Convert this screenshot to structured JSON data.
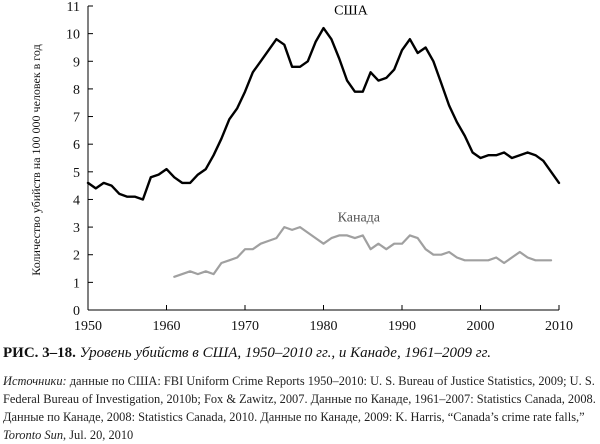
{
  "chart_data": {
    "type": "line",
    "xlabel": "",
    "ylabel": "Количество убийств на 100 000 человек в год",
    "xlim": [
      1950,
      2010
    ],
    "ylim": [
      0,
      11
    ],
    "x_ticks": [
      "1950",
      "1960",
      "1970",
      "1980",
      "1990",
      "2000",
      "2010"
    ],
    "y_ticks": [
      "0",
      "1",
      "2",
      "3",
      "4",
      "5",
      "6",
      "7",
      "8",
      "9",
      "10",
      "11"
    ],
    "grid": false,
    "series": [
      {
        "name": "США",
        "color": "#000000",
        "x": [
          1950,
          1951,
          1952,
          1953,
          1954,
          1955,
          1956,
          1957,
          1958,
          1959,
          1960,
          1961,
          1962,
          1963,
          1964,
          1965,
          1966,
          1967,
          1968,
          1969,
          1970,
          1971,
          1972,
          1973,
          1974,
          1975,
          1976,
          1977,
          1978,
          1979,
          1980,
          1981,
          1982,
          1983,
          1984,
          1985,
          1986,
          1987,
          1988,
          1989,
          1990,
          1991,
          1992,
          1993,
          1994,
          1995,
          1996,
          1997,
          1998,
          1999,
          2000,
          2001,
          2002,
          2003,
          2004,
          2005,
          2006,
          2007,
          2008,
          2009,
          2010
        ],
        "values": [
          4.6,
          4.4,
          4.6,
          4.5,
          4.2,
          4.1,
          4.1,
          4.0,
          4.8,
          4.9,
          5.1,
          4.8,
          4.6,
          4.6,
          4.9,
          5.1,
          5.6,
          6.2,
          6.9,
          7.3,
          7.9,
          8.6,
          9.0,
          9.4,
          9.8,
          9.6,
          8.8,
          8.8,
          9.0,
          9.7,
          10.2,
          9.8,
          9.1,
          8.3,
          7.9,
          7.9,
          8.6,
          8.3,
          8.4,
          8.7,
          9.4,
          9.8,
          9.3,
          9.5,
          9.0,
          8.2,
          7.4,
          6.8,
          6.3,
          5.7,
          5.5,
          5.6,
          5.6,
          5.7,
          5.5,
          5.6,
          5.7,
          5.6,
          5.4,
          5.0,
          4.6
        ]
      },
      {
        "name": "Канада",
        "color": "#a0a0a0",
        "x": [
          1961,
          1962,
          1963,
          1964,
          1965,
          1966,
          1967,
          1968,
          1969,
          1970,
          1971,
          1972,
          1973,
          1974,
          1975,
          1976,
          1977,
          1978,
          1979,
          1980,
          1981,
          1982,
          1983,
          1984,
          1985,
          1986,
          1987,
          1988,
          1989,
          1990,
          1991,
          1992,
          1993,
          1994,
          1995,
          1996,
          1997,
          1998,
          1999,
          2000,
          2001,
          2002,
          2003,
          2004,
          2005,
          2006,
          2007,
          2008,
          2009
        ],
        "values": [
          1.2,
          1.3,
          1.4,
          1.3,
          1.4,
          1.3,
          1.7,
          1.8,
          1.9,
          2.2,
          2.2,
          2.4,
          2.5,
          2.6,
          3.0,
          2.9,
          3.0,
          2.8,
          2.6,
          2.4,
          2.6,
          2.7,
          2.7,
          2.6,
          2.7,
          2.2,
          2.4,
          2.2,
          2.4,
          2.4,
          2.7,
          2.6,
          2.2,
          2.0,
          2.0,
          2.1,
          1.9,
          1.8,
          1.8,
          1.8,
          1.8,
          1.9,
          1.7,
          1.9,
          2.1,
          1.9,
          1.8,
          1.8,
          1.8
        ]
      }
    ],
    "annotations": [
      {
        "text": "США",
        "x": 1983.5,
        "y": 10.7
      },
      {
        "text": "Канада",
        "x": 1984.5,
        "y": 3.2
      }
    ]
  },
  "caption": {
    "label": "РИС. 3–18.",
    "text": "Уровень убийств в США, 1950–2010 гг., и Канаде, 1961–2009 гг."
  },
  "sources": {
    "intro": "Источники:",
    "part1": " данные по США: FBI Uniform Crime Reports 1950–2010: U. S. Bureau of Justice Statistics, 2009; U. S. Federal Bureau of Investigation, 2010b; Fox & Zawitz, 2007. Данные по Канаде, 1961–2007: Statistics Canada, 2008. Данные по Канаде, 2008: Statistics Canada, 2010. Данные по Канаде, 2009: K. Harris, “Canada’s crime rate falls,” ",
    "journal": "Toronto Sun",
    "part2": ", Jul. 20, 2010"
  }
}
